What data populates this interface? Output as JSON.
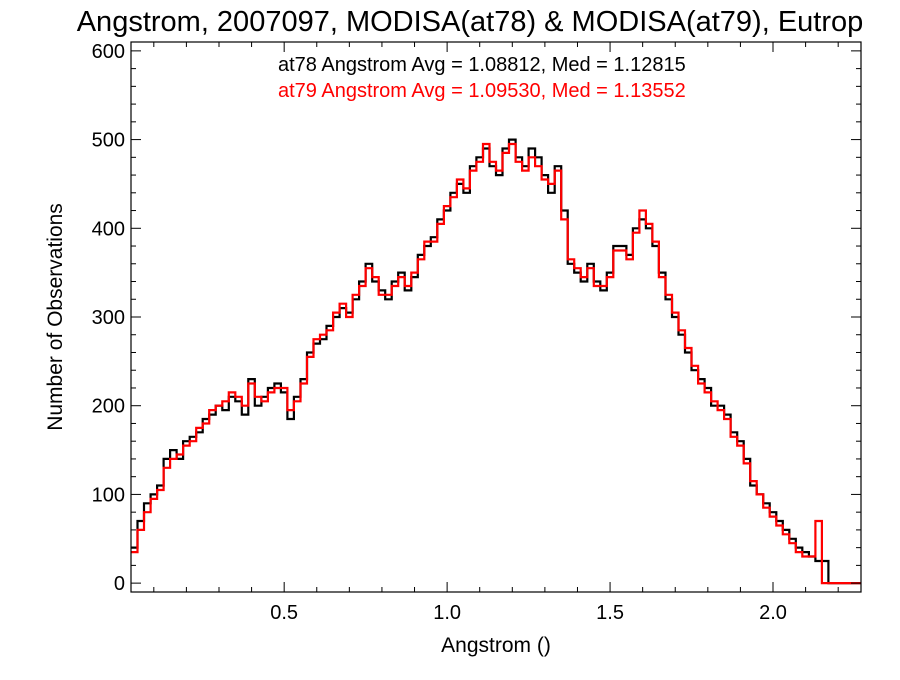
{
  "chart_data": {
    "type": "line",
    "title": "Angstrom, 2007097, MODISA(at78) & MODISA(at79), Eutrop",
    "xlabel": "Angstrom ()",
    "ylabel": "Number of Observations",
    "xlim": [
      0.03,
      2.27
    ],
    "ylim": [
      -10,
      610
    ],
    "x_ticks": [
      0.5,
      1.0,
      1.5,
      2.0
    ],
    "x_tick_labels": [
      "0.5",
      "1.0",
      "1.5",
      "2.0"
    ],
    "y_ticks": [
      0,
      100,
      200,
      300,
      400,
      500,
      600
    ],
    "y_tick_labels": [
      "0",
      "100",
      "200",
      "300",
      "400",
      "500",
      "600"
    ],
    "grid": false,
    "step": true,
    "x": [
      0.03,
      0.05,
      0.07,
      0.09,
      0.11,
      0.13,
      0.15,
      0.17,
      0.19,
      0.21,
      0.23,
      0.25,
      0.27,
      0.29,
      0.31,
      0.33,
      0.35,
      0.37,
      0.39,
      0.41,
      0.43,
      0.45,
      0.47,
      0.49,
      0.51,
      0.53,
      0.55,
      0.57,
      0.59,
      0.61,
      0.63,
      0.65,
      0.67,
      0.69,
      0.71,
      0.73,
      0.75,
      0.77,
      0.79,
      0.81,
      0.83,
      0.85,
      0.87,
      0.89,
      0.91,
      0.93,
      0.95,
      0.97,
      0.99,
      1.01,
      1.03,
      1.05,
      1.07,
      1.09,
      1.11,
      1.13,
      1.15,
      1.17,
      1.19,
      1.21,
      1.23,
      1.25,
      1.27,
      1.29,
      1.31,
      1.33,
      1.35,
      1.37,
      1.39,
      1.41,
      1.43,
      1.45,
      1.47,
      1.49,
      1.51,
      1.53,
      1.55,
      1.57,
      1.59,
      1.61,
      1.63,
      1.65,
      1.67,
      1.69,
      1.71,
      1.73,
      1.75,
      1.77,
      1.79,
      1.81,
      1.83,
      1.85,
      1.87,
      1.89,
      1.91,
      1.93,
      1.95,
      1.97,
      1.99,
      2.01,
      2.03,
      2.05,
      2.07,
      2.09,
      2.11,
      2.13,
      2.15,
      2.17,
      2.19,
      2.21,
      2.23,
      2.25,
      2.27
    ],
    "series": [
      {
        "name": "at78",
        "color": "#000000",
        "values": [
          40,
          70,
          90,
          100,
          110,
          140,
          150,
          140,
          160,
          165,
          170,
          185,
          190,
          200,
          195,
          210,
          205,
          190,
          230,
          200,
          210,
          220,
          225,
          215,
          185,
          210,
          230,
          260,
          270,
          275,
          290,
          300,
          310,
          305,
          320,
          340,
          360,
          340,
          330,
          320,
          340,
          350,
          330,
          345,
          370,
          380,
          390,
          410,
          420,
          440,
          450,
          440,
          470,
          480,
          490,
          470,
          460,
          490,
          500,
          480,
          470,
          490,
          480,
          460,
          440,
          470,
          420,
          360,
          350,
          340,
          360,
          340,
          330,
          350,
          380,
          380,
          370,
          400,
          410,
          400,
          380,
          350,
          320,
          300,
          280,
          260,
          240,
          230,
          220,
          200,
          200,
          190,
          170,
          160,
          140,
          110,
          100,
          90,
          80,
          70,
          60,
          50,
          40,
          35,
          30,
          25,
          25,
          0,
          0,
          0,
          0,
          0,
          0
        ],
        "avg_label": "at78 Angstrom Avg = 1.08812, Med = 1.12815"
      },
      {
        "name": "at79",
        "color": "#ff0000",
        "values": [
          35,
          60,
          80,
          95,
          105,
          130,
          140,
          145,
          155,
          160,
          175,
          180,
          195,
          200,
          205,
          215,
          210,
          200,
          225,
          210,
          205,
          215,
          220,
          220,
          195,
          205,
          225,
          255,
          275,
          280,
          285,
          305,
          315,
          300,
          325,
          335,
          355,
          345,
          325,
          325,
          335,
          345,
          335,
          350,
          365,
          385,
          385,
          405,
          425,
          435,
          455,
          445,
          465,
          475,
          495,
          475,
          465,
          485,
          495,
          475,
          465,
          480,
          470,
          455,
          450,
          465,
          410,
          365,
          355,
          345,
          355,
          335,
          335,
          345,
          375,
          375,
          365,
          395,
          420,
          405,
          385,
          345,
          325,
          305,
          285,
          265,
          245,
          225,
          215,
          205,
          195,
          185,
          165,
          155,
          135,
          115,
          100,
          85,
          75,
          65,
          55,
          45,
          35,
          30,
          30,
          70,
          0,
          0,
          0,
          0,
          0,
          0,
          0
        ],
        "avg_label": "at79 Angstrom Avg = 1.09530, Med = 1.13552"
      }
    ]
  }
}
